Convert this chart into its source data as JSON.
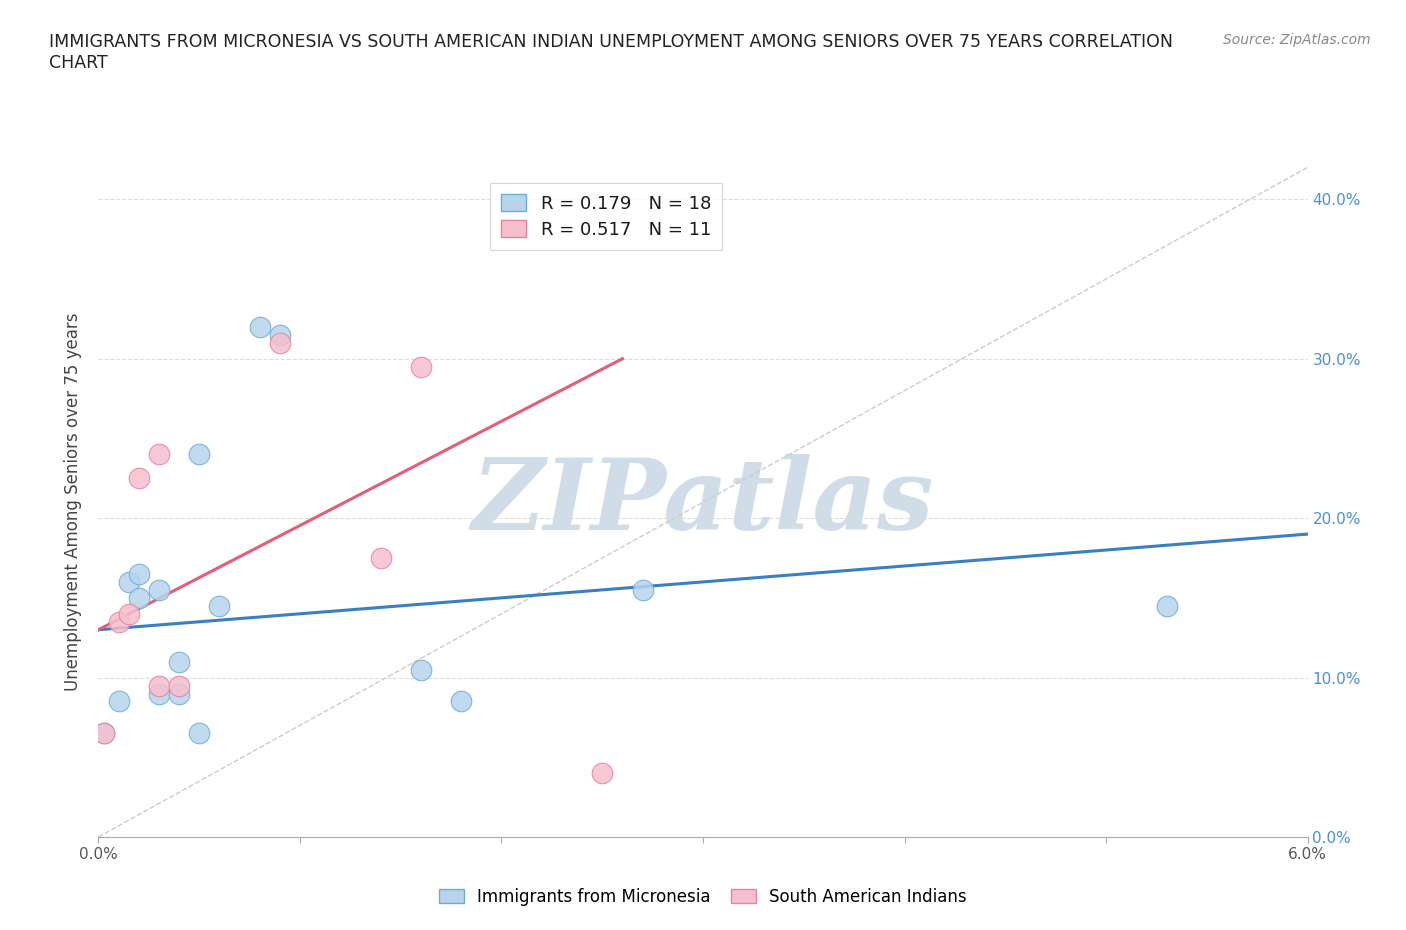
{
  "title_line1": "IMMIGRANTS FROM MICRONESIA VS SOUTH AMERICAN INDIAN UNEMPLOYMENT AMONG SENIORS OVER 75 YEARS CORRELATION",
  "title_line2": "CHART",
  "source": "Source: ZipAtlas.com",
  "ylabel": "Unemployment Among Seniors over 75 years",
  "xlim": [
    0.0,
    0.06
  ],
  "ylim": [
    0.0,
    0.42
  ],
  "x_ticks": [
    0.0,
    0.01,
    0.02,
    0.03,
    0.04,
    0.05,
    0.06
  ],
  "x_tick_labels_edge": {
    "0": "0.0%",
    "6": "6.0%"
  },
  "y_ticks": [
    0.0,
    0.1,
    0.2,
    0.3,
    0.4
  ],
  "y_right_labels": [
    "0.0%",
    "10.0%",
    "20.0%",
    "30.0%",
    "40.0%"
  ],
  "blue_R": "0.179",
  "blue_N": "18",
  "pink_R": "0.517",
  "pink_N": "11",
  "blue_fill": "#b8d4ed",
  "pink_fill": "#f5bfcf",
  "blue_edge": "#6aaed6",
  "pink_edge": "#e8829a",
  "blue_line": "#3a7fc1",
  "pink_line": "#e0607a",
  "dashed_color": "#cccccc",
  "right_tick_color": "#4a90d9",
  "watermark_color": "#d0dce8",
  "watermark_text": "ZIPatlas",
  "blue_scatter_x": [
    0.0003,
    0.001,
    0.0015,
    0.002,
    0.002,
    0.003,
    0.003,
    0.004,
    0.004,
    0.005,
    0.005,
    0.006,
    0.008,
    0.009,
    0.016,
    0.018,
    0.027,
    0.053
  ],
  "blue_scatter_y": [
    0.065,
    0.085,
    0.16,
    0.15,
    0.165,
    0.09,
    0.155,
    0.09,
    0.11,
    0.065,
    0.24,
    0.145,
    0.32,
    0.315,
    0.105,
    0.085,
    0.155,
    0.145
  ],
  "pink_scatter_x": [
    0.0003,
    0.001,
    0.0015,
    0.002,
    0.003,
    0.003,
    0.004,
    0.009,
    0.014,
    0.016,
    0.025
  ],
  "pink_scatter_y": [
    0.065,
    0.135,
    0.14,
    0.225,
    0.24,
    0.095,
    0.095,
    0.31,
    0.175,
    0.295,
    0.04
  ],
  "blue_trend_x": [
    0.0,
    0.06
  ],
  "blue_trend_y": [
    0.13,
    0.19
  ],
  "pink_trend_x": [
    0.0,
    0.026
  ],
  "pink_trend_y": [
    0.13,
    0.3
  ],
  "dashed_trend_x": [
    0.0,
    0.06
  ],
  "dashed_trend_y": [
    0.0,
    0.42
  ],
  "legend1_text": "R = 0.179   N = 18",
  "legend2_text": "R = 0.517   N = 11",
  "legend_bottom1": "Immigrants from Micronesia",
  "legend_bottom2": "South American Indians"
}
